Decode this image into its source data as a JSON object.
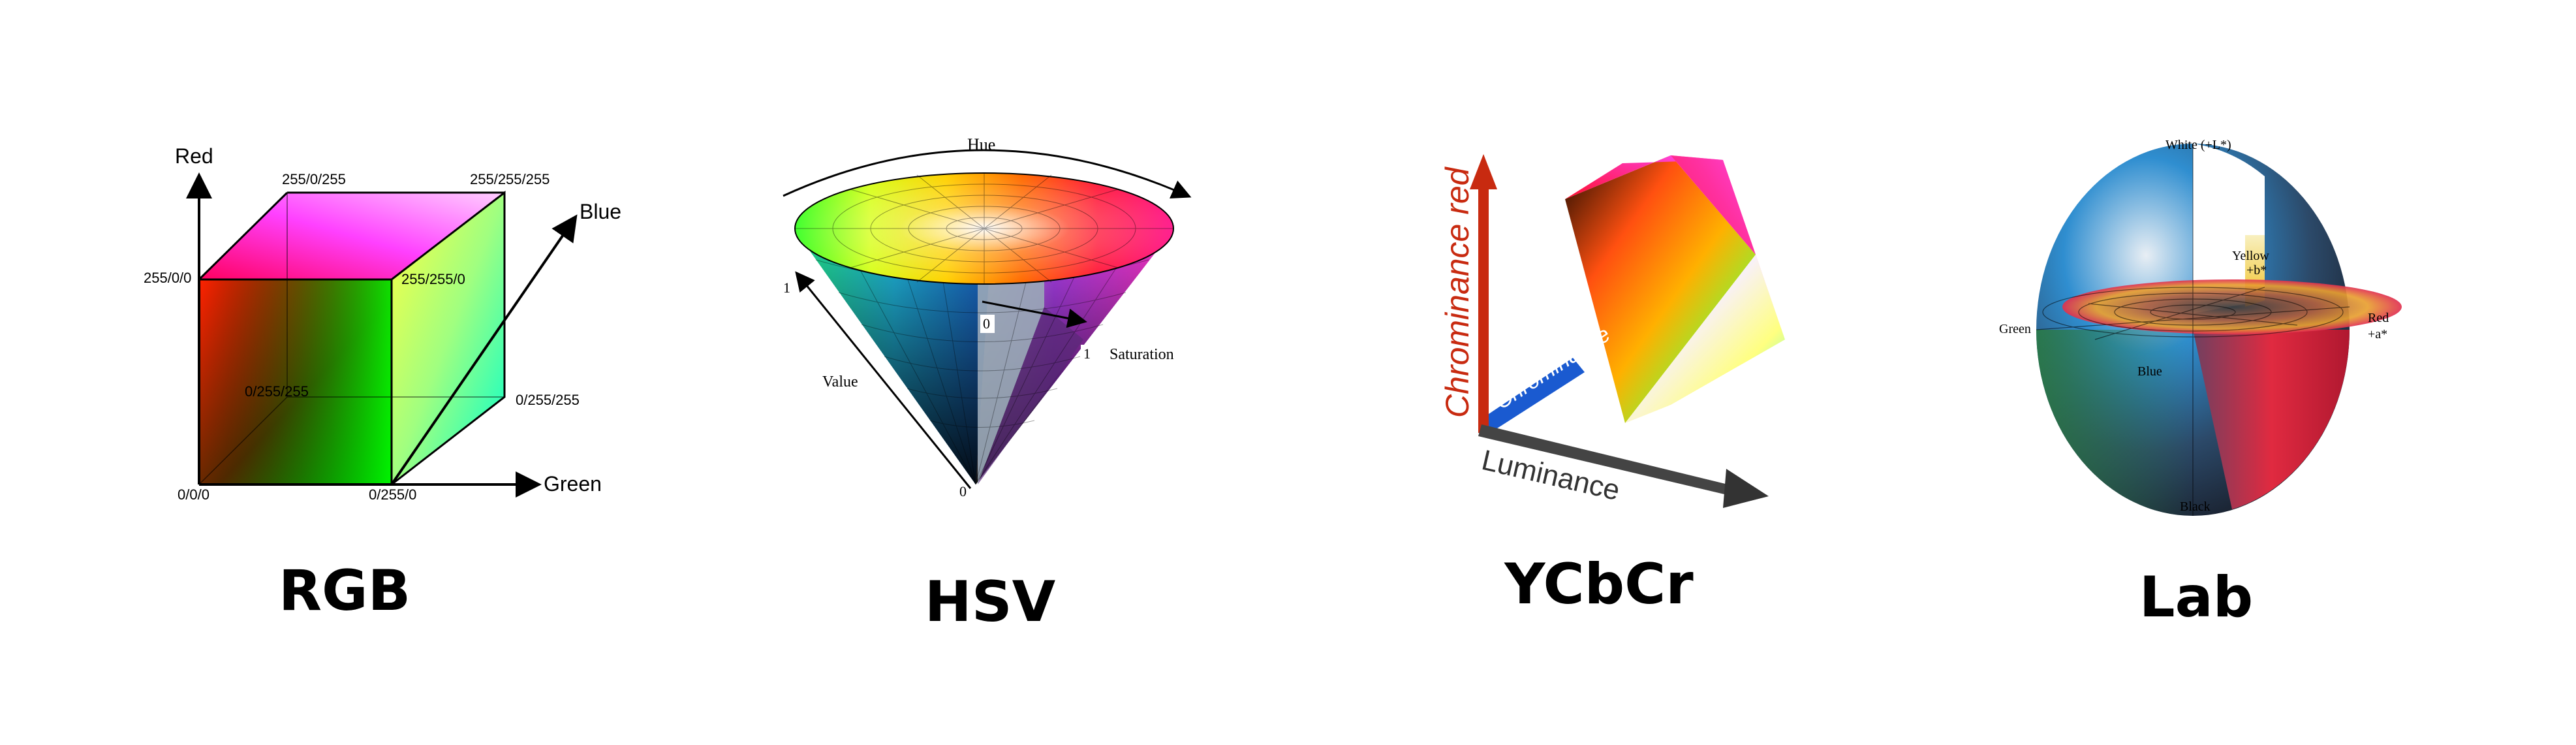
{
  "rgb": {
    "caption": "RGB",
    "axis_red": "Red",
    "axis_green": "Green",
    "axis_blue": "Blue",
    "corners": {
      "origin": "0/0/0",
      "red": "255/0/0",
      "green": "0/255/0",
      "magenta": "255/0/255",
      "white": "255/255/255",
      "yellow": "255/255/0",
      "cyan": "0/255/255",
      "blue_back": "0/255/255",
      "cyan_inner": "0/255/255"
    }
  },
  "hsv": {
    "caption": "HSV",
    "hue": "Hue",
    "saturation": "Saturation",
    "value": "Value",
    "v_max": "1",
    "v_min": "0",
    "s_zero": "0",
    "s_one": "1"
  },
  "ycbcr": {
    "caption": "YCbCr",
    "axis_cr": "Chrominance red",
    "axis_cb": "Chrominance",
    "axis_y": "Luminance"
  },
  "lab": {
    "caption": "Lab",
    "white": "White (+L*)",
    "black": "Black",
    "yellow": "Yellow",
    "yellow_axis": "+b*",
    "red": "Red",
    "red_axis": "+a*",
    "green": "Green",
    "blue": "Blue"
  }
}
